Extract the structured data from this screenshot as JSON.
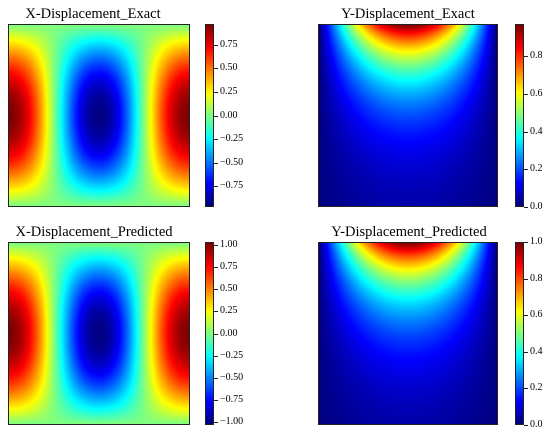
{
  "colormap": "jet",
  "colormap_stops": [
    "#000080",
    "#0000ff",
    "#00ffff",
    "#ffff00",
    "#ff0000",
    "#800000"
  ],
  "chart_data": [
    {
      "type": "heatmap",
      "title": "X-Displacement_Exact",
      "field": "x",
      "value_range": [
        -0.97,
        0.97
      ],
      "colorbar_ticks": [
        "0.75",
        "0.50",
        "0.25",
        "0.00",
        "−0.25",
        "−0.50",
        "−0.75"
      ],
      "colorbar_tick_values": [
        0.75,
        0.5,
        0.25,
        0.0,
        -0.25,
        -0.5,
        -0.75
      ]
    },
    {
      "type": "heatmap",
      "title": "Y-Displacement_Exact",
      "field": "y",
      "value_range": [
        0.0,
        0.97
      ],
      "colorbar_ticks": [
        "0.8",
        "0.6",
        "0.4",
        "0.2",
        "0.0"
      ],
      "colorbar_tick_values": [
        0.8,
        0.6,
        0.4,
        0.2,
        0.0
      ]
    },
    {
      "type": "heatmap",
      "title": "X-Displacement_Predicted",
      "field": "x",
      "value_range": [
        -1.03,
        1.03
      ],
      "colorbar_ticks": [
        "1.00",
        "0.75",
        "0.50",
        "0.25",
        "0.00",
        "−0.25",
        "−0.50",
        "−0.75",
        "−1.00"
      ],
      "colorbar_tick_values": [
        1.0,
        0.75,
        0.5,
        0.25,
        0.0,
        -0.25,
        -0.5,
        -0.75,
        -1.0
      ]
    },
    {
      "type": "heatmap",
      "title": "Y-Displacement_Predicted",
      "field": "y",
      "value_range": [
        0.0,
        1.0
      ],
      "colorbar_ticks": [
        "1.0",
        "0.8",
        "0.6",
        "0.4",
        "0.2",
        "0.0"
      ],
      "colorbar_tick_values": [
        1.0,
        0.8,
        0.6,
        0.4,
        0.2,
        0.0
      ]
    }
  ]
}
